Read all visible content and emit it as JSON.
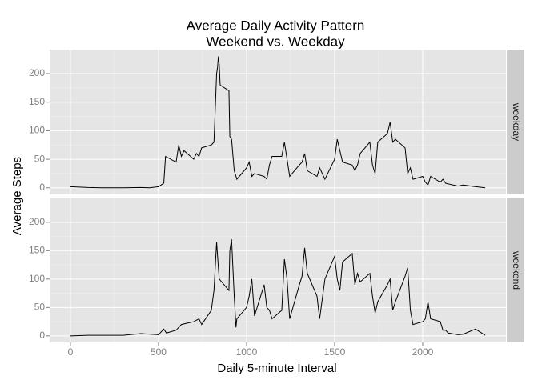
{
  "chart_data": {
    "type": "line",
    "title": [
      "Average Daily Activity Pattern",
      "Weekend vs. Weekday"
    ],
    "x_label": "Daily 5-minute Interval",
    "y_label": "Average Steps",
    "xlim": [
      -117.75,
      2472.75
    ],
    "xticks": [
      0,
      500,
      1000,
      1500,
      2000
    ],
    "ylim": [
      -11.5,
      242
    ],
    "yticks": [
      0,
      50,
      100,
      150,
      200
    ],
    "grid": true,
    "series": [
      {
        "name": "weekday",
        "color": "#000000",
        "x": [
          0,
          100,
          200,
          300,
          400,
          450,
          500,
          515,
          530,
          540,
          600,
          615,
          630,
          645,
          700,
          715,
          730,
          745,
          800,
          815,
          830,
          835,
          840,
          845,
          850,
          900,
          905,
          915,
          930,
          945,
          1000,
          1015,
          1030,
          1045,
          1100,
          1115,
          1130,
          1145,
          1200,
          1215,
          1230,
          1245,
          1300,
          1315,
          1330,
          1345,
          1400,
          1415,
          1430,
          1445,
          1500,
          1515,
          1530,
          1545,
          1600,
          1615,
          1630,
          1645,
          1700,
          1715,
          1730,
          1745,
          1800,
          1815,
          1830,
          1845,
          1900,
          1915,
          1930,
          1945,
          2000,
          2015,
          2030,
          2045,
          2100,
          2115,
          2130,
          2200,
          2230,
          2300,
          2355
        ],
        "values": [
          2,
          0.5,
          0,
          0,
          0.5,
          0,
          2,
          5,
          8,
          55,
          45,
          75,
          55,
          65,
          50,
          60,
          55,
          70,
          75,
          80,
          200,
          210,
          230,
          215,
          180,
          170,
          90,
          85,
          30,
          15,
          35,
          45,
          20,
          25,
          20,
          15,
          40,
          55,
          55,
          80,
          50,
          20,
          40,
          45,
          60,
          30,
          20,
          35,
          25,
          15,
          50,
          85,
          65,
          45,
          40,
          30,
          40,
          60,
          80,
          40,
          25,
          80,
          95,
          115,
          80,
          85,
          70,
          25,
          35,
          15,
          20,
          10,
          5,
          20,
          10,
          15,
          8,
          3,
          5,
          2,
          0
        ]
      },
      {
        "name": "weekend",
        "color": "#000000",
        "x": [
          0,
          100,
          300,
          400,
          500,
          530,
          545,
          600,
          615,
          630,
          700,
          730,
          745,
          800,
          815,
          830,
          840,
          845,
          900,
          905,
          915,
          930,
          940,
          945,
          1000,
          1015,
          1030,
          1045,
          1100,
          1115,
          1130,
          1145,
          1200,
          1215,
          1230,
          1245,
          1300,
          1315,
          1330,
          1345,
          1400,
          1415,
          1430,
          1445,
          1500,
          1515,
          1530,
          1545,
          1600,
          1615,
          1630,
          1645,
          1700,
          1715,
          1730,
          1745,
          1800,
          1815,
          1830,
          1845,
          1900,
          1915,
          1930,
          1945,
          2000,
          2015,
          2030,
          2045,
          2100,
          2115,
          2130,
          2145,
          2200,
          2230,
          2300,
          2330,
          2355
        ],
        "values": [
          0,
          1,
          1,
          4,
          2,
          12,
          5,
          10,
          15,
          20,
          25,
          30,
          20,
          45,
          80,
          165,
          120,
          100,
          80,
          150,
          170,
          70,
          15,
          30,
          50,
          70,
          100,
          35,
          90,
          50,
          45,
          30,
          45,
          135,
          100,
          30,
          90,
          105,
          155,
          110,
          70,
          30,
          65,
          100,
          140,
          100,
          80,
          130,
          145,
          90,
          110,
          95,
          110,
          70,
          40,
          60,
          90,
          100,
          45,
          60,
          105,
          120,
          45,
          20,
          25,
          30,
          60,
          30,
          25,
          10,
          10,
          5,
          2,
          3,
          12,
          6,
          1
        ]
      }
    ]
  }
}
